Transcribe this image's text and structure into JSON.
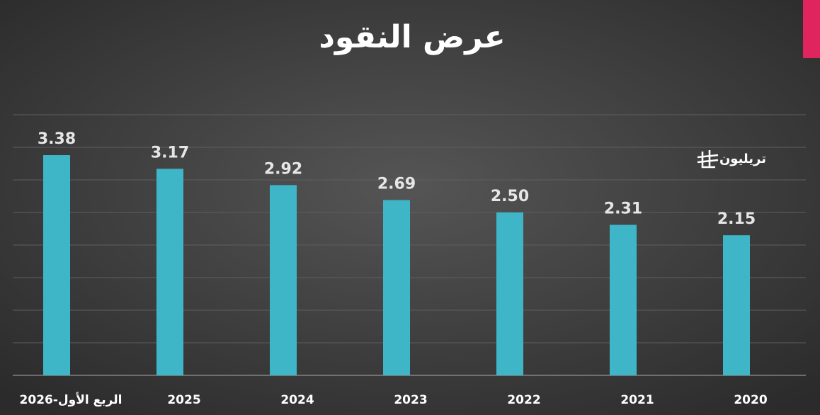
{
  "chart_data": {
    "type": "bar",
    "title": "عرض النقود",
    "unit": "تريليون",
    "categories": [
      "الربع الأول-2026",
      "2025",
      "2024",
      "2023",
      "2022",
      "2021",
      "2020"
    ],
    "values": [
      3.38,
      3.17,
      2.92,
      2.69,
      2.5,
      2.31,
      2.15
    ],
    "value_labels": [
      "3.38",
      "3.17",
      "2.92",
      "2.69",
      "2.50",
      "2.31",
      "2.15"
    ],
    "color": "#3fb6c8",
    "ylim": [
      0,
      4
    ],
    "yticks": [
      0,
      0.5,
      1,
      1.5,
      2,
      2.5,
      3,
      3.5,
      4
    ],
    "grid": true
  }
}
